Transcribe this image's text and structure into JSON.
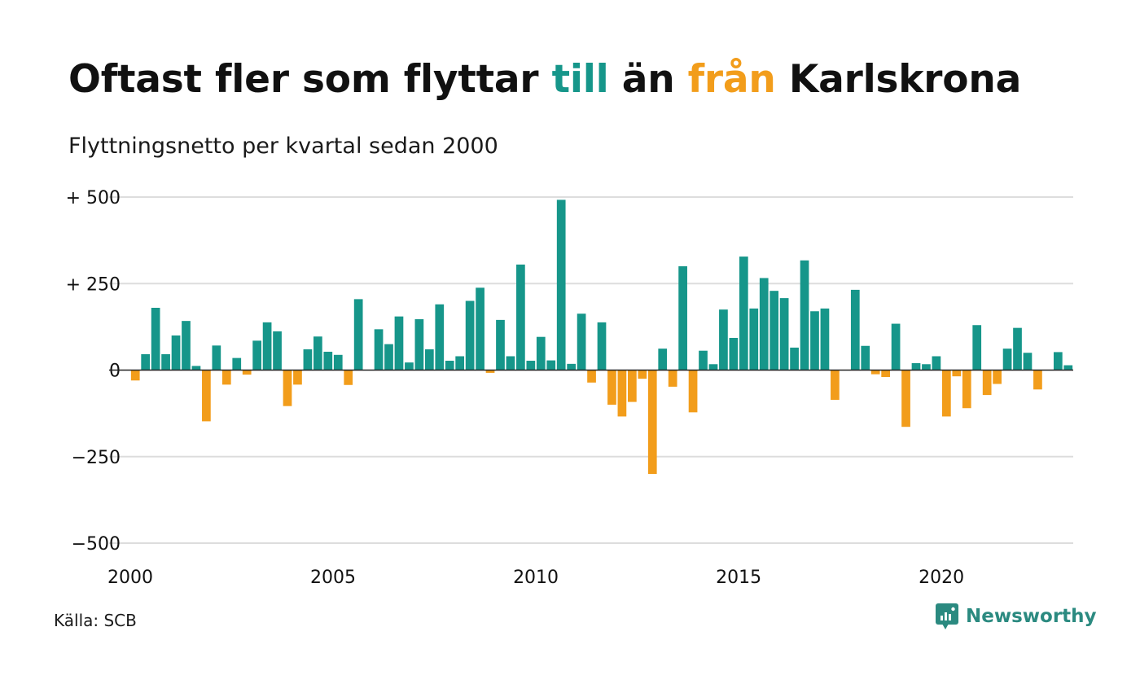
{
  "title": {
    "part1": "Oftast fler som flyttar ",
    "highlight_pos": "till",
    "part2": " än ",
    "highlight_neg": "från",
    "part3": " Karlskrona"
  },
  "subtitle": "Flyttningsnetto per kvartal sedan 2000",
  "source": "Källa: SCB",
  "brand": {
    "name": "Newsworthy",
    "icon": "newsworthy-logo-icon"
  },
  "colors": {
    "positive": "#16968a",
    "negative": "#f29d1b",
    "grid": "#dddddd",
    "axis": "#222222",
    "brand": "#2b8a80"
  },
  "chart_data": {
    "type": "bar",
    "title": "Flyttningsnetto per kvartal sedan 2000",
    "xlabel": "",
    "ylabel": "",
    "ylim": [
      -500,
      500
    ],
    "yticks": [
      500,
      250,
      0,
      -250,
      -500
    ],
    "ytick_labels": [
      "+ 500",
      "+ 250",
      "0",
      "−250",
      "−500"
    ],
    "xlim": [
      2000,
      2023.25
    ],
    "xticks": [
      2000,
      2005,
      2010,
      2015,
      2020
    ],
    "xtick_labels": [
      "2000",
      "2005",
      "2010",
      "2015",
      "2020"
    ],
    "grid": true,
    "legend": "none",
    "categories": [
      "2000 Q1",
      "2000 Q2",
      "2000 Q3",
      "2000 Q4",
      "2001 Q1",
      "2001 Q2",
      "2001 Q3",
      "2001 Q4",
      "2002 Q1",
      "2002 Q2",
      "2002 Q3",
      "2002 Q4",
      "2003 Q1",
      "2003 Q2",
      "2003 Q3",
      "2003 Q4",
      "2004 Q1",
      "2004 Q2",
      "2004 Q3",
      "2004 Q4",
      "2005 Q1",
      "2005 Q2",
      "2005 Q3",
      "2005 Q4",
      "2006 Q1",
      "2006 Q2",
      "2006 Q3",
      "2006 Q4",
      "2007 Q1",
      "2007 Q2",
      "2007 Q3",
      "2007 Q4",
      "2008 Q1",
      "2008 Q2",
      "2008 Q3",
      "2008 Q4",
      "2009 Q1",
      "2009 Q2",
      "2009 Q3",
      "2009 Q4",
      "2010 Q1",
      "2010 Q2",
      "2010 Q3",
      "2010 Q4",
      "2011 Q1",
      "2011 Q2",
      "2011 Q3",
      "2011 Q4",
      "2012 Q1",
      "2012 Q2",
      "2012 Q3",
      "2012 Q4",
      "2013 Q1",
      "2013 Q2",
      "2013 Q3",
      "2013 Q4",
      "2014 Q1",
      "2014 Q2",
      "2014 Q3",
      "2014 Q4",
      "2015 Q1",
      "2015 Q2",
      "2015 Q3",
      "2015 Q4",
      "2016 Q1",
      "2016 Q2",
      "2016 Q3",
      "2016 Q4",
      "2017 Q1",
      "2017 Q2",
      "2017 Q3",
      "2017 Q4",
      "2018 Q1",
      "2018 Q2",
      "2018 Q3",
      "2018 Q4",
      "2019 Q1",
      "2019 Q2",
      "2019 Q3",
      "2019 Q4",
      "2020 Q1",
      "2020 Q2",
      "2020 Q3",
      "2020 Q4",
      "2021 Q1",
      "2021 Q2",
      "2021 Q3",
      "2021 Q4",
      "2022 Q1",
      "2022 Q2",
      "2022 Q3",
      "2022 Q4",
      "2023 Q1"
    ],
    "values": [
      -30,
      46,
      180,
      46,
      100,
      142,
      12,
      -148,
      71,
      -42,
      35,
      -13,
      85,
      138,
      112,
      -104,
      -42,
      60,
      97,
      53,
      44,
      -43,
      205,
      0,
      118,
      75,
      155,
      22,
      147,
      60,
      190,
      27,
      40,
      200,
      238,
      -8,
      145,
      40,
      305,
      27,
      96,
      28,
      492,
      18,
      163,
      -36,
      138,
      -100,
      -134,
      -92,
      -25,
      -300,
      62,
      -48,
      300,
      -122,
      56,
      17,
      175,
      93,
      328,
      178,
      266,
      229,
      208,
      65,
      317,
      170,
      178,
      -86,
      0,
      232,
      70,
      -12,
      -20,
      134,
      -164,
      20,
      17,
      40,
      -134,
      -18,
      -110,
      130,
      -72,
      -40,
      62,
      122,
      50,
      -56,
      0,
      52,
      14
    ]
  }
}
